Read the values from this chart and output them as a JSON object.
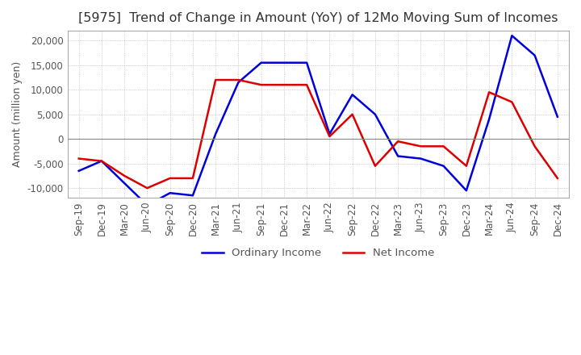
{
  "title": "[5975]  Trend of Change in Amount (YoY) of 12Mo Moving Sum of Incomes",
  "ylabel": "Amount (million yen)",
  "title_fontsize": 11.5,
  "label_fontsize": 9,
  "tick_fontsize": 8.5,
  "legend_fontsize": 9.5,
  "background_color": "#ffffff",
  "grid_color": "#aaaaaa",
  "spine_color": "#aaaaaa",
  "title_color": "#333333",
  "tick_color": "#555555",
  "ordinary_income_color": "#0000dd",
  "net_income_color": "#dd0000",
  "ylim": [
    -12000,
    22000
  ],
  "labels": [
    "Sep-19",
    "Dec-19",
    "Mar-20",
    "Jun-20",
    "Sep-20",
    "Dec-20",
    "Mar-21",
    "Jun-21",
    "Sep-21",
    "Dec-21",
    "Mar-22",
    "Jun-22",
    "Sep-22",
    "Dec-22",
    "Mar-23",
    "Jun-23",
    "Sep-23",
    "Dec-23",
    "Mar-24",
    "Jun-24",
    "Sep-24",
    "Dec-24"
  ],
  "ordinary_income": [
    -6500,
    -4500,
    -9000,
    -13500,
    -11000,
    -11500,
    1000,
    11500,
    15500,
    15500,
    15500,
    1000,
    9000,
    5000,
    -3500,
    -4000,
    -5500,
    -10500,
    4000,
    21000,
    17000,
    4500
  ],
  "net_income": [
    -4000,
    -4500,
    -7500,
    -10000,
    -8000,
    -8000,
    12000,
    12000,
    11000,
    11000,
    11000,
    500,
    5000,
    -5500,
    -500,
    -1500,
    -1500,
    -5500,
    9500,
    7500,
    -1500,
    -8000
  ]
}
